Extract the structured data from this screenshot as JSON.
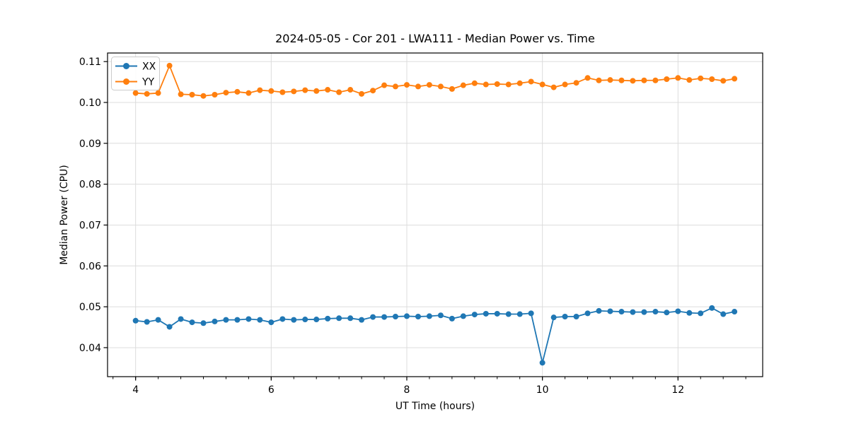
{
  "chart_data": {
    "type": "line",
    "title": "2024-05-05 - Cor 201 - LWA111 - Median Power vs. Time",
    "xlabel": "UT Time (hours)",
    "ylabel": "Median Power (CPU)",
    "xlim": [
      3.586,
      13.249
    ],
    "ylim": [
      0.0329,
      0.1121
    ],
    "xticks": [
      4,
      6,
      8,
      10,
      12
    ],
    "x_minor_step": 0.33333,
    "yticks": [
      0.04,
      0.05,
      0.06,
      0.07,
      0.08,
      0.09,
      0.1,
      0.11
    ],
    "grid": true,
    "grid_color": "#dcdcdc",
    "legend_position": "upper-left",
    "x": [
      4.0,
      4.167,
      4.333,
      4.5,
      4.667,
      4.833,
      5.0,
      5.167,
      5.333,
      5.5,
      5.667,
      5.833,
      6.0,
      6.167,
      6.333,
      6.5,
      6.667,
      6.833,
      7.0,
      7.167,
      7.333,
      7.5,
      7.667,
      7.833,
      8.0,
      8.167,
      8.333,
      8.5,
      8.667,
      8.833,
      9.0,
      9.167,
      9.333,
      9.5,
      9.667,
      9.833,
      10.0,
      10.167,
      10.333,
      10.5,
      10.667,
      10.833,
      11.0,
      11.167,
      11.333,
      11.5,
      11.667,
      11.833,
      12.0,
      12.167,
      12.333,
      12.5,
      12.667,
      12.833
    ],
    "series": [
      {
        "name": "XX",
        "color": "#1f77b4",
        "values": [
          0.0466,
          0.0463,
          0.0468,
          0.0451,
          0.047,
          0.0462,
          0.046,
          0.0464,
          0.0468,
          0.0468,
          0.047,
          0.0468,
          0.0462,
          0.047,
          0.0468,
          0.0469,
          0.0469,
          0.0471,
          0.0472,
          0.0472,
          0.0468,
          0.0475,
          0.0475,
          0.0476,
          0.0477,
          0.0476,
          0.0477,
          0.0479,
          0.0471,
          0.0477,
          0.0481,
          0.0483,
          0.0483,
          0.0482,
          0.0482,
          0.0484,
          0.0363,
          0.0474,
          0.0476,
          0.0476,
          0.0484,
          0.049,
          0.0489,
          0.0488,
          0.0487,
          0.0487,
          0.0488,
          0.0486,
          0.0489,
          0.0485,
          0.0484,
          0.0497,
          0.0482,
          0.0488
        ]
      },
      {
        "name": "YY",
        "color": "#ff7f0e",
        "values": [
          0.1023,
          0.1021,
          0.1023,
          0.109,
          0.102,
          0.1019,
          0.1016,
          0.1019,
          0.1024,
          0.1026,
          0.1023,
          0.103,
          0.1028,
          0.1025,
          0.1027,
          0.103,
          0.1028,
          0.1031,
          0.1025,
          0.1031,
          0.1021,
          0.1029,
          0.1042,
          0.1039,
          0.1043,
          0.1039,
          0.1043,
          0.1039,
          0.1033,
          0.1042,
          0.1047,
          0.1044,
          0.1045,
          0.1044,
          0.1047,
          0.1051,
          0.1044,
          0.1037,
          0.1044,
          0.1048,
          0.106,
          0.1054,
          0.1055,
          0.1054,
          0.1053,
          0.1054,
          0.1054,
          0.1057,
          0.106,
          0.1055,
          0.1059,
          0.1057,
          0.1053,
          0.1058
        ]
      }
    ]
  }
}
